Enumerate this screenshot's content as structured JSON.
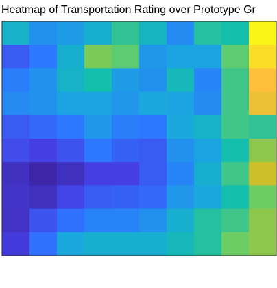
{
  "chart_data": {
    "type": "heatmap",
    "title": "Heatmap of Transportation Rating over Prototype Gr",
    "xlabel": "",
    "ylabel": "",
    "colormap": "parula",
    "grid": false,
    "legend": false,
    "rows": 10,
    "cols": 10,
    "values": [
      [
        0.52,
        0.38,
        0.42,
        0.5,
        0.64,
        0.54,
        0.36,
        0.62,
        0.6,
        0.99
      ],
      [
        0.22,
        0.3,
        0.5,
        0.74,
        0.7,
        0.4,
        0.44,
        0.44,
        0.7,
        0.95
      ],
      [
        0.32,
        0.38,
        0.52,
        0.6,
        0.42,
        0.38,
        0.56,
        0.34,
        0.66,
        0.9
      ],
      [
        0.36,
        0.38,
        0.44,
        0.44,
        0.4,
        0.46,
        0.44,
        0.36,
        0.66,
        0.88
      ],
      [
        0.22,
        0.26,
        0.3,
        0.4,
        0.32,
        0.3,
        0.46,
        0.52,
        0.66,
        0.64
      ],
      [
        0.18,
        0.14,
        0.2,
        0.3,
        0.24,
        0.22,
        0.38,
        0.44,
        0.6,
        0.76
      ],
      [
        0.06,
        0.0,
        0.06,
        0.14,
        0.14,
        0.22,
        0.34,
        0.5,
        0.66,
        0.84
      ],
      [
        0.08,
        0.05,
        0.16,
        0.22,
        0.24,
        0.26,
        0.4,
        0.46,
        0.6,
        0.72
      ],
      [
        0.07,
        0.2,
        0.28,
        0.34,
        0.34,
        0.38,
        0.5,
        0.62,
        0.66,
        0.76
      ],
      [
        0.12,
        0.28,
        0.46,
        0.5,
        0.5,
        0.5,
        0.56,
        0.62,
        0.72,
        0.76
      ]
    ]
  }
}
